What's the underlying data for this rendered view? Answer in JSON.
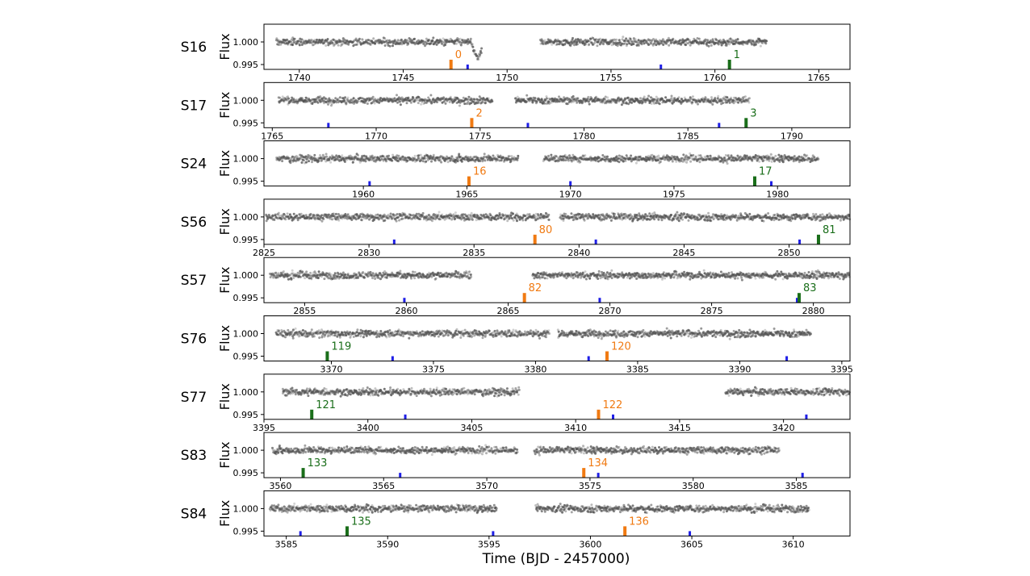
{
  "figure": {
    "xlabel": "Time (BJD - 2457000)",
    "ylabel": "Flux"
  },
  "colors": {
    "even_marker": "#f07a12",
    "odd_marker": "#1a6e1a",
    "model_marker": "#1f1fe6",
    "points": "#555555"
  },
  "chart_data": [
    {
      "type": "scatter",
      "sector": "S16",
      "ylabel": "Flux",
      "xlim": [
        1738.3,
        1766.5
      ],
      "ylim": [
        0.9944,
        1.0022
      ],
      "yticks": [
        1.0,
        0.995
      ],
      "ytick_labels": [
        "1.000",
        "0.995"
      ],
      "xticks": [
        1740,
        1745,
        1750,
        1755,
        1760,
        1765
      ],
      "segments": [
        [
          1738.9,
          1748.8
        ],
        [
          1751.6,
          1762.5
        ]
      ],
      "dips": [
        {
          "x": 1748.6,
          "depth": 0.004
        }
      ],
      "transits": [
        {
          "x": 1747.3,
          "label": "0",
          "type": "even"
        },
        {
          "x": 1760.7,
          "label": "1",
          "type": "odd"
        }
      ],
      "blue_marks": [
        1748.1,
        1757.4
      ]
    },
    {
      "type": "scatter",
      "sector": "S17",
      "ylabel": "Flux",
      "xlim": [
        1764.6,
        1792.8
      ],
      "ylim": [
        0.9944,
        1.0022
      ],
      "yticks": [
        1.0,
        0.995
      ],
      "ytick_labels": [
        "1.000",
        "0.995"
      ],
      "xticks": [
        1765,
        1770,
        1775,
        1780,
        1785,
        1790
      ],
      "segments": [
        [
          1765.3,
          1775.6
        ],
        [
          1776.7,
          1788.0
        ]
      ],
      "dips": [],
      "transits": [
        {
          "x": 1774.6,
          "label": "2",
          "type": "even"
        },
        {
          "x": 1787.8,
          "label": "3",
          "type": "odd"
        }
      ],
      "blue_marks": [
        1767.7,
        1777.3,
        1786.5
      ]
    },
    {
      "type": "scatter",
      "sector": "S24",
      "ylabel": "Flux",
      "xlim": [
        1955.2,
        1983.5
      ],
      "ylim": [
        0.9944,
        1.0022
      ],
      "yticks": [
        1.0,
        0.995
      ],
      "ytick_labels": [
        "1.000",
        "0.995"
      ],
      "xticks": [
        1960,
        1965,
        1970,
        1975,
        1980
      ],
      "segments": [
        [
          1955.8,
          1967.5
        ],
        [
          1968.7,
          1982.0
        ]
      ],
      "dips": [],
      "transits": [
        {
          "x": 1965.1,
          "label": "16",
          "type": "even"
        },
        {
          "x": 1978.9,
          "label": "17",
          "type": "odd"
        }
      ],
      "blue_marks": [
        1960.3,
        1970.0,
        1979.7
      ]
    },
    {
      "type": "scatter",
      "sector": "S56",
      "ylabel": "Flux",
      "xlim": [
        2825.0,
        2852.9
      ],
      "ylim": [
        0.9944,
        1.0022
      ],
      "yticks": [
        1.0,
        0.995
      ],
      "ytick_labels": [
        "1.000",
        "0.995"
      ],
      "xticks": [
        2825,
        2830,
        2835,
        2840,
        2845,
        2850
      ],
      "segments": [
        [
          2825.1,
          2838.6
        ],
        [
          2839.1,
          2852.9
        ]
      ],
      "dips": [],
      "transits": [
        {
          "x": 2837.9,
          "label": "80",
          "type": "even"
        },
        {
          "x": 2851.4,
          "label": "81",
          "type": "odd"
        }
      ],
      "blue_marks": [
        2831.2,
        2840.8,
        2850.5
      ]
    },
    {
      "type": "scatter",
      "sector": "S57",
      "ylabel": "Flux",
      "xlim": [
        2853.0,
        2881.8
      ],
      "ylim": [
        0.9944,
        1.0022
      ],
      "yticks": [
        1.0,
        0.995
      ],
      "ytick_labels": [
        "1.000",
        "0.995"
      ],
      "xticks": [
        2855,
        2860,
        2865,
        2870,
        2875,
        2880
      ],
      "segments": [
        [
          2853.3,
          2863.2
        ],
        [
          2866.2,
          2881.8
        ]
      ],
      "dips": [],
      "transits": [
        {
          "x": 2865.8,
          "label": "82",
          "type": "even"
        },
        {
          "x": 2879.3,
          "label": "83",
          "type": "odd"
        }
      ],
      "blue_marks": [
        2859.9,
        2869.5,
        2879.2
      ]
    },
    {
      "type": "scatter",
      "sector": "S76",
      "ylabel": "Flux",
      "xlim": [
        3366.7,
        3395.4
      ],
      "ylim": [
        0.9944,
        1.0022
      ],
      "yticks": [
        1.0,
        0.995
      ],
      "ytick_labels": [
        "1.000",
        "0.995"
      ],
      "xticks": [
        3370,
        3375,
        3380,
        3385,
        3390,
        3395
      ],
      "segments": [
        [
          3367.3,
          3380.7
        ],
        [
          3381.1,
          3393.5
        ]
      ],
      "dips": [],
      "transits": [
        {
          "x": 3369.8,
          "label": "119",
          "type": "odd"
        },
        {
          "x": 3383.5,
          "label": "120",
          "type": "even"
        }
      ],
      "blue_marks": [
        3373.0,
        3382.6,
        3392.3
      ]
    },
    {
      "type": "scatter",
      "sector": "S77",
      "ylabel": "Flux",
      "xlim": [
        3395.0,
        3423.2
      ],
      "ylim": [
        0.9944,
        1.0022
      ],
      "yticks": [
        1.0,
        0.995
      ],
      "ytick_labels": [
        "1.000",
        "0.995"
      ],
      "xticks": [
        3395,
        3400,
        3405,
        3410,
        3415,
        3420
      ],
      "segments": [
        [
          3395.9,
          3407.3
        ],
        [
          3417.2,
          3423.2
        ]
      ],
      "dips": [],
      "transits": [
        {
          "x": 3397.3,
          "label": "121",
          "type": "odd"
        },
        {
          "x": 3411.1,
          "label": "122",
          "type": "even"
        }
      ],
      "blue_marks": [
        3401.8,
        3411.8,
        3421.1
      ]
    },
    {
      "type": "scatter",
      "sector": "S83",
      "ylabel": "Flux",
      "xlim": [
        3559.2,
        3587.6
      ],
      "ylim": [
        0.9944,
        1.0022
      ],
      "yticks": [
        1.0,
        0.995
      ],
      "ytick_labels": [
        "1.000",
        "0.995"
      ],
      "xticks": [
        3560,
        3565,
        3570,
        3575,
        3580,
        3585
      ],
      "segments": [
        [
          3559.6,
          3571.5
        ],
        [
          3572.3,
          3584.2
        ]
      ],
      "dips": [],
      "transits": [
        {
          "x": 3561.1,
          "label": "133",
          "type": "odd"
        },
        {
          "x": 3574.7,
          "label": "134",
          "type": "even"
        }
      ],
      "blue_marks": [
        3565.8,
        3575.4,
        3585.3
      ]
    },
    {
      "type": "scatter",
      "sector": "S84",
      "ylabel": "Flux",
      "xlim": [
        3583.9,
        3612.8
      ],
      "ylim": [
        0.9944,
        1.0022
      ],
      "yticks": [
        1.0,
        0.995
      ],
      "ytick_labels": [
        "1.000",
        "0.995"
      ],
      "xticks": [
        3585,
        3590,
        3595,
        3600,
        3605,
        3610
      ],
      "segments": [
        [
          3584.2,
          3595.4
        ],
        [
          3597.3,
          3610.8
        ]
      ],
      "dips": [],
      "transits": [
        {
          "x": 3588.0,
          "label": "135",
          "type": "odd"
        },
        {
          "x": 3601.7,
          "label": "136",
          "type": "even"
        }
      ],
      "blue_marks": [
        3585.7,
        3595.2,
        3604.9
      ]
    }
  ]
}
